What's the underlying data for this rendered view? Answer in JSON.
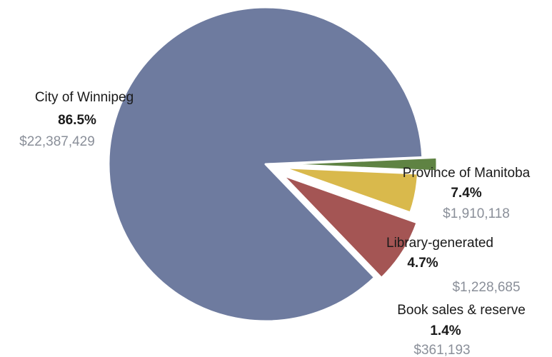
{
  "chart_data": {
    "type": "pie",
    "title": "",
    "slices": [
      {
        "label": "City of Winnipeg",
        "percent": 86.5,
        "percent_label": "86.5%",
        "amount": 22387429,
        "amount_label": "$22,387,429",
        "color": "#6e7b9f"
      },
      {
        "label": "Province of Manitoba",
        "percent": 7.4,
        "percent_label": "7.4%",
        "amount": 1910118,
        "amount_label": "$1,910,118",
        "color": "#a45554"
      },
      {
        "label": "Library-generated",
        "percent": 4.7,
        "percent_label": "4.7%",
        "amount": 1228685,
        "amount_label": "$1,228,685",
        "color": "#d9b94c"
      },
      {
        "label": "Book sales & reserve",
        "percent": 1.4,
        "percent_label": "1.4%",
        "amount": 361193,
        "amount_label": "$361,193",
        "color": "#5f8343"
      }
    ],
    "legend": "none"
  }
}
